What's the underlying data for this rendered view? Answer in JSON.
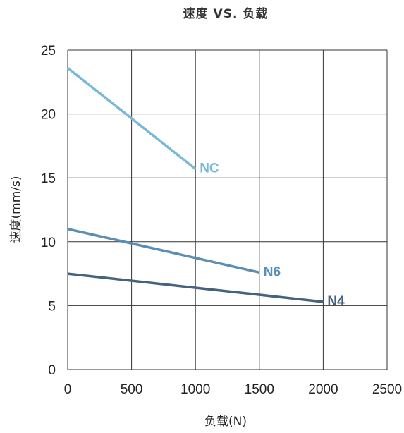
{
  "chart_data": {
    "type": "line",
    "title": "速度 VS. 负载",
    "xlabel": "负载(N)",
    "ylabel": "速度(mm/s)",
    "xlim": [
      0,
      2500
    ],
    "ylim": [
      0,
      25
    ],
    "xticks": [
      "0",
      "500",
      "1000",
      "1500",
      "2000",
      "2500"
    ],
    "yticks": [
      "0",
      "5",
      "10",
      "15",
      "20",
      "25"
    ],
    "grid": true,
    "legend": "none",
    "series": [
      {
        "name": "NC",
        "color": "#7ab8d9",
        "x": [
          0,
          1000
        ],
        "y": [
          23.6,
          15.7
        ]
      },
      {
        "name": "N6",
        "color": "#5b8db5",
        "x": [
          0,
          1500
        ],
        "y": [
          11.0,
          7.6
        ]
      },
      {
        "name": "N4",
        "color": "#45627f",
        "x": [
          0,
          2000
        ],
        "y": [
          7.5,
          5.3
        ]
      }
    ]
  }
}
